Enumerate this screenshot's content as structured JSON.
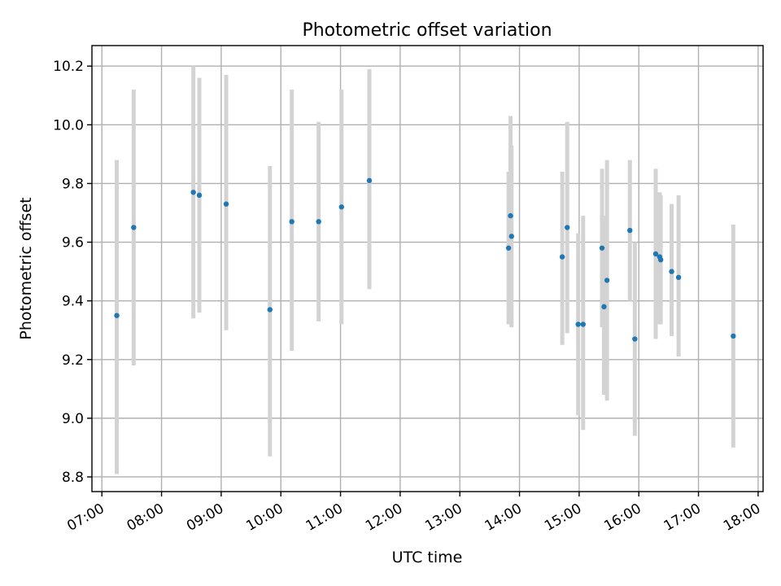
{
  "chart_data": {
    "type": "scatter",
    "title": "Photometric offset variation",
    "xlabel": "UTC time",
    "ylabel": "Photometric offset",
    "x_tick_labels": [
      "07:00",
      "08:00",
      "09:00",
      "10:00",
      "11:00",
      "12:00",
      "13:00",
      "14:00",
      "15:00",
      "16:00",
      "17:00",
      "18:00"
    ],
    "y_tick_labels": [
      "8.8",
      "9.0",
      "9.2",
      "9.4",
      "9.6",
      "9.8",
      "10.0",
      "10.2"
    ],
    "y_ticks": [
      8.8,
      9.0,
      9.2,
      9.4,
      9.6,
      9.8,
      10.0,
      10.2
    ],
    "xlim": [
      "06:50",
      "18:05"
    ],
    "ylim": [
      8.75,
      10.27
    ],
    "grid": true,
    "point_color": "#1f77b4",
    "errorbar_color": "#d3d3d3",
    "points": [
      {
        "x": "07:15",
        "y": 9.35,
        "ylo": 8.81,
        "yhi": 9.88
      },
      {
        "x": "07:32",
        "y": 9.65,
        "ylo": 9.18,
        "yhi": 10.12
      },
      {
        "x": "08:32",
        "y": 9.77,
        "ylo": 9.34,
        "yhi": 10.2
      },
      {
        "x": "08:38",
        "y": 9.76,
        "ylo": 9.36,
        "yhi": 10.16
      },
      {
        "x": "09:05",
        "y": 9.73,
        "ylo": 9.3,
        "yhi": 10.17
      },
      {
        "x": "09:49",
        "y": 9.37,
        "ylo": 8.87,
        "yhi": 9.86
      },
      {
        "x": "10:11",
        "y": 9.67,
        "ylo": 9.23,
        "yhi": 10.12
      },
      {
        "x": "10:38",
        "y": 9.67,
        "ylo": 9.33,
        "yhi": 10.01
      },
      {
        "x": "11:01",
        "y": 9.72,
        "ylo": 9.32,
        "yhi": 10.12
      },
      {
        "x": "11:29",
        "y": 9.81,
        "ylo": 9.44,
        "yhi": 10.19
      },
      {
        "x": "13:49",
        "y": 9.58,
        "ylo": 9.32,
        "yhi": 9.84
      },
      {
        "x": "13:51",
        "y": 9.69,
        "ylo": 9.35,
        "yhi": 10.03
      },
      {
        "x": "13:52",
        "y": 9.62,
        "ylo": 9.31,
        "yhi": 9.93
      },
      {
        "x": "14:43",
        "y": 9.55,
        "ylo": 9.25,
        "yhi": 9.84
      },
      {
        "x": "14:48",
        "y": 9.65,
        "ylo": 9.29,
        "yhi": 10.01
      },
      {
        "x": "14:59",
        "y": 9.32,
        "ylo": 9.01,
        "yhi": 9.63
      },
      {
        "x": "15:04",
        "y": 9.32,
        "ylo": 8.96,
        "yhi": 9.69
      },
      {
        "x": "15:23",
        "y": 9.58,
        "ylo": 9.31,
        "yhi": 9.85
      },
      {
        "x": "15:25",
        "y": 9.38,
        "ylo": 9.08,
        "yhi": 9.69
      },
      {
        "x": "15:28",
        "y": 9.47,
        "ylo": 9.06,
        "yhi": 9.88
      },
      {
        "x": "15:51",
        "y": 9.64,
        "ylo": 9.4,
        "yhi": 9.88
      },
      {
        "x": "15:56",
        "y": 9.27,
        "ylo": 8.94,
        "yhi": 9.6
      },
      {
        "x": "16:17",
        "y": 9.56,
        "ylo": 9.27,
        "yhi": 9.85
      },
      {
        "x": "16:21",
        "y": 9.55,
        "ylo": 9.32,
        "yhi": 9.77
      },
      {
        "x": "16:22",
        "y": 9.54,
        "ylo": 9.32,
        "yhi": 9.76
      },
      {
        "x": "16:33",
        "y": 9.5,
        "ylo": 9.28,
        "yhi": 9.73
      },
      {
        "x": "16:40",
        "y": 9.48,
        "ylo": 9.21,
        "yhi": 9.76
      },
      {
        "x": "17:35",
        "y": 9.28,
        "ylo": 8.9,
        "yhi": 9.66
      }
    ]
  }
}
